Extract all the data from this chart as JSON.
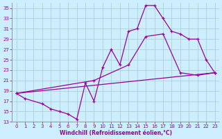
{
  "xlabel": "Windchill (Refroidissement éolien,°C)",
  "bg_color": "#cceeff",
  "line_color": "#990099",
  "grid_color": "#aacccc",
  "xlim": [
    -0.5,
    23.5
  ],
  "ylim": [
    13,
    36
  ],
  "xticks": [
    0,
    1,
    2,
    3,
    4,
    5,
    6,
    7,
    8,
    9,
    10,
    11,
    12,
    13,
    14,
    15,
    16,
    17,
    18,
    19,
    20,
    21,
    22,
    23
  ],
  "yticks": [
    13,
    15,
    17,
    19,
    21,
    23,
    25,
    27,
    29,
    31,
    33,
    35
  ],
  "line1_x": [
    0,
    1,
    3,
    4,
    5,
    6,
    7,
    8,
    9,
    10,
    11,
    12,
    13,
    14,
    15,
    16,
    17,
    18,
    19,
    20,
    21,
    22,
    23
  ],
  "line1_y": [
    18.5,
    17.5,
    16.5,
    15.5,
    15.0,
    14.5,
    13.5,
    20.5,
    17.0,
    23.5,
    27.0,
    24.0,
    30.5,
    31.0,
    35.5,
    35.5,
    33.0,
    30.5,
    30.0,
    29.0,
    29.0,
    25.0,
    22.5
  ],
  "line2_x": [
    0,
    9,
    13,
    15,
    17,
    19,
    21,
    23
  ],
  "line2_y": [
    18.5,
    21.0,
    24.0,
    29.5,
    30.0,
    22.5,
    22.0,
    22.5
  ],
  "line3_x": [
    0,
    23
  ],
  "line3_y": [
    18.5,
    22.5
  ]
}
